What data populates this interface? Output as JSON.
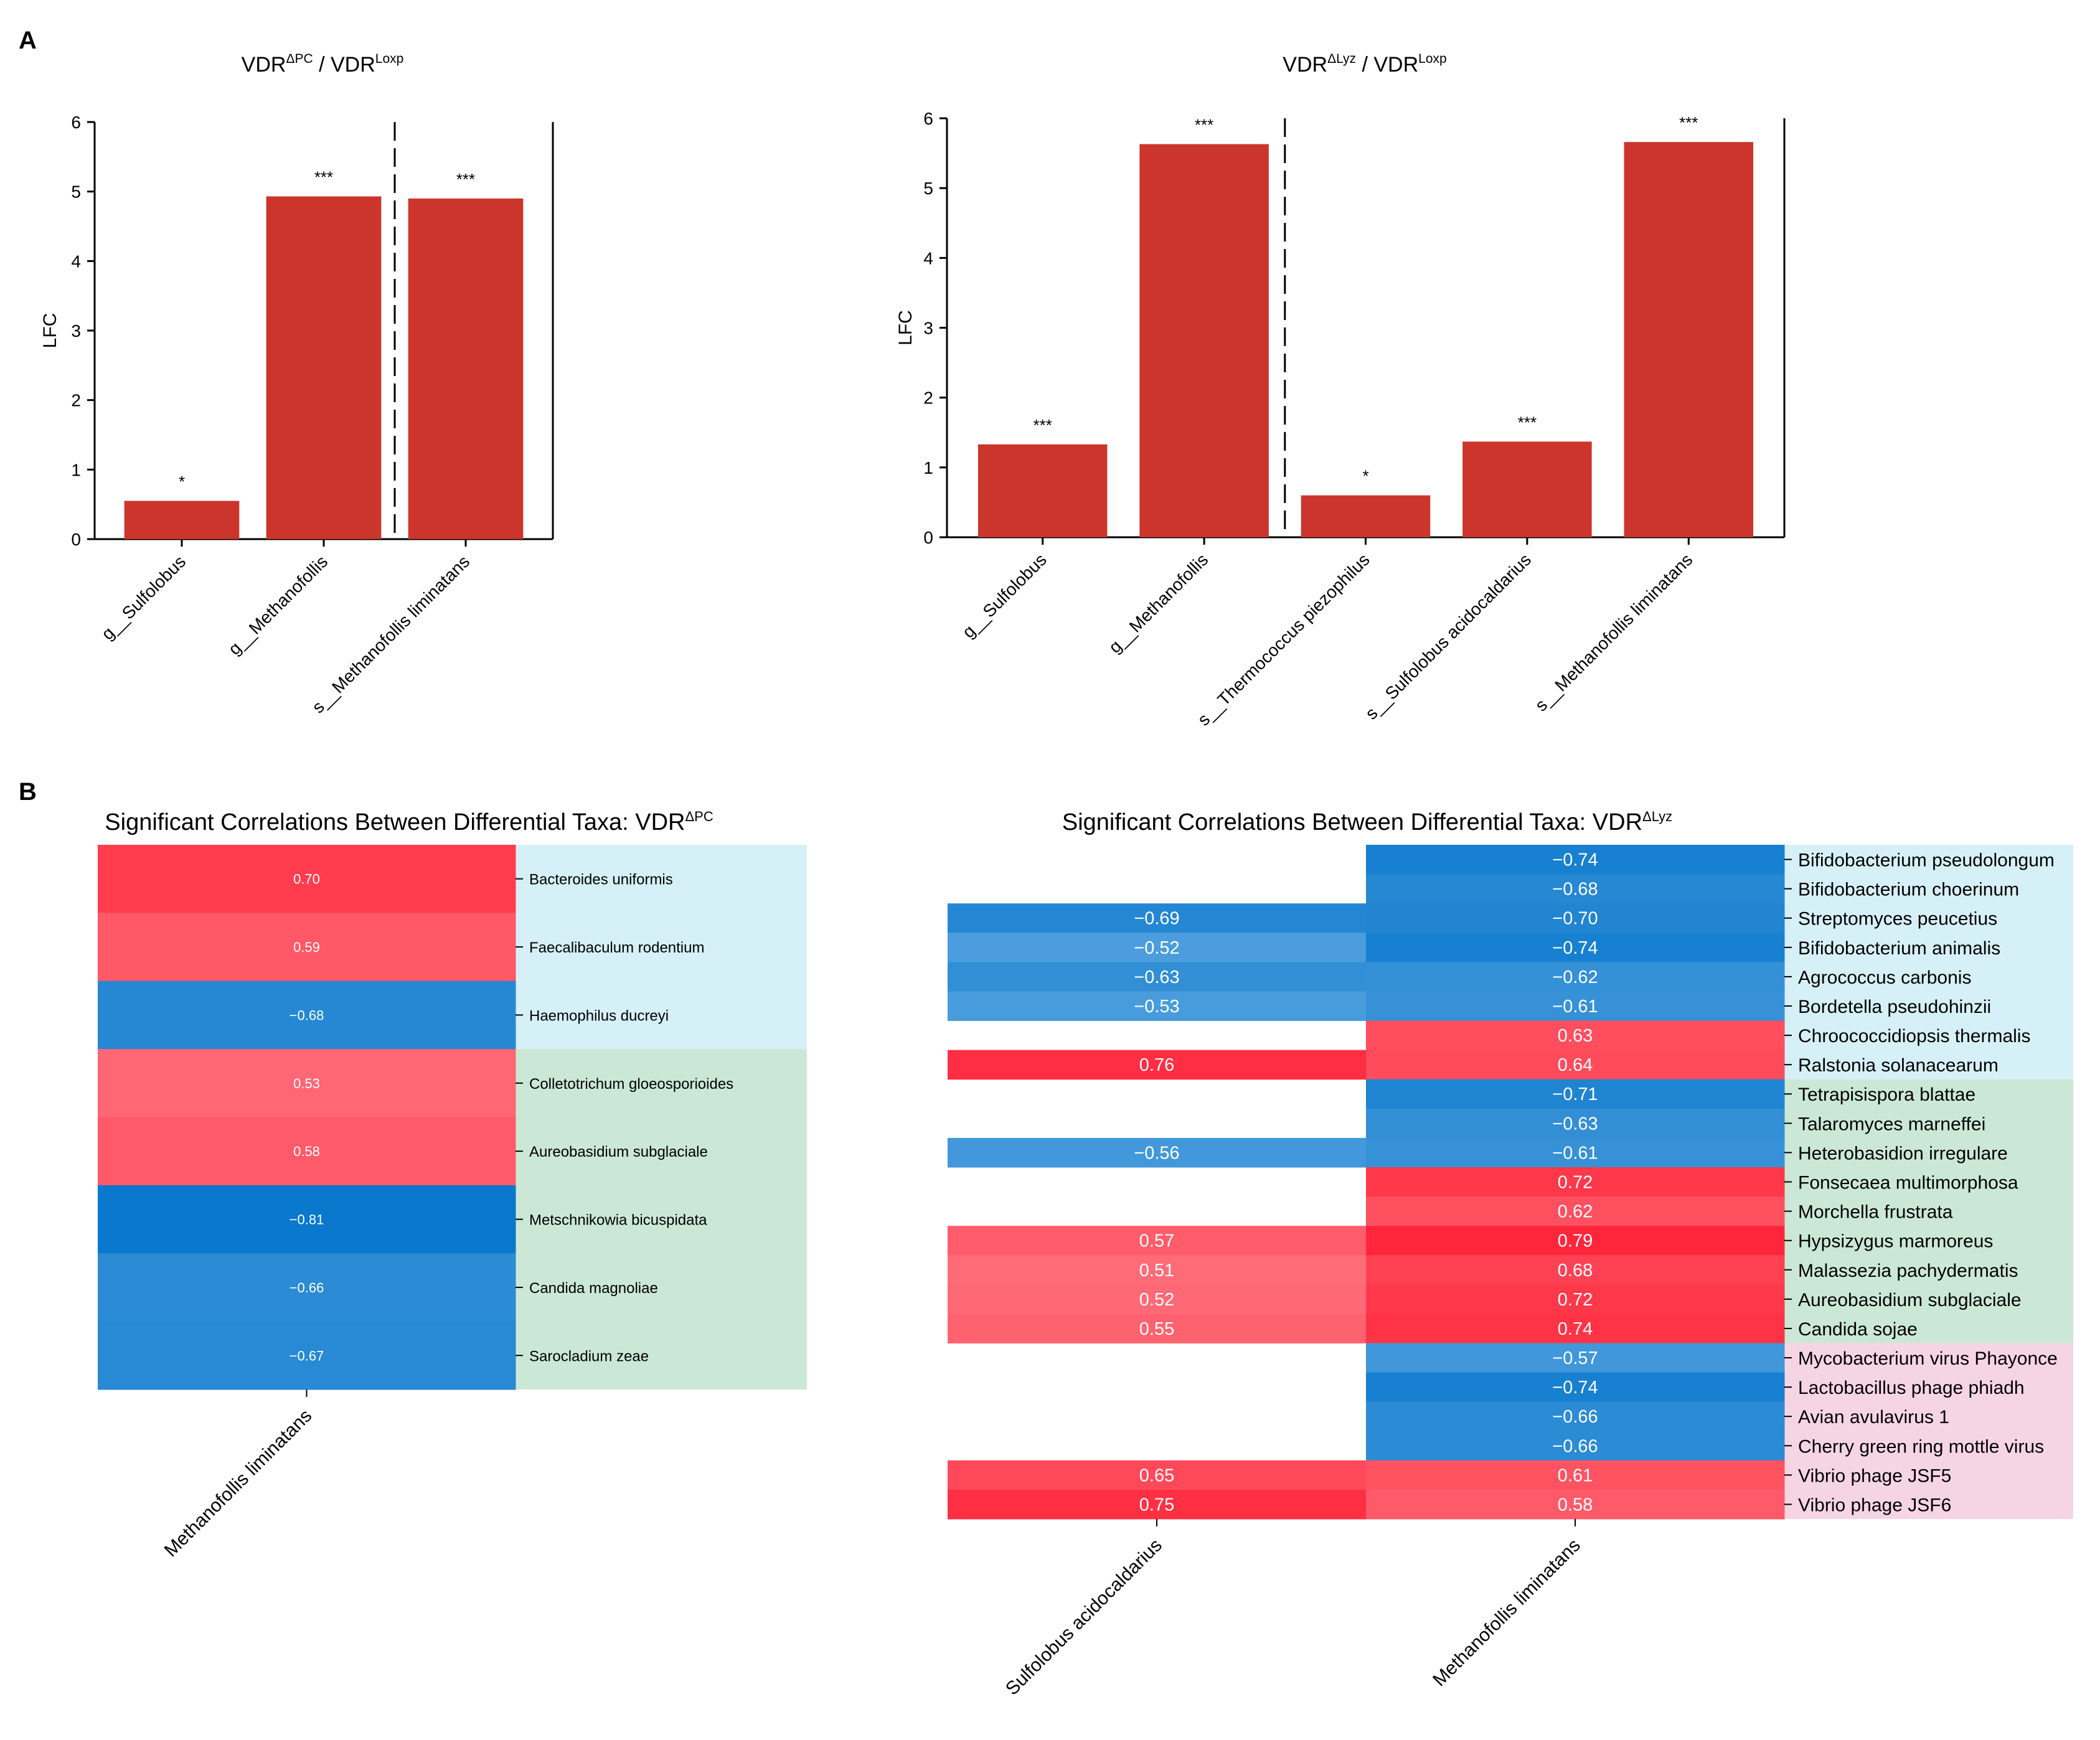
{
  "panel_labels": {
    "a": "A",
    "b": "B"
  },
  "colors": {
    "bar": "#cc352b",
    "negative_strong": "#0a78cc",
    "positive_strong": "#ff2439",
    "bg_bacteria": "#d6f0f7",
    "bg_fungi": "#cbe8d6",
    "bg_virus": "#f6d5e2"
  },
  "chart_data": [
    {
      "type": "bar",
      "id": "barPC",
      "title": {
        "prefix": "VDR",
        "sup1": "ΔPC",
        "middle": " / VDR",
        "sup2": "Loxp"
      },
      "ylabel": "LFC",
      "ylim": [
        0,
        6
      ],
      "yticks": [
        0,
        1,
        2,
        3,
        4,
        5,
        6
      ],
      "categories": [
        "g__Sulfolobus",
        "g__Methanofollis",
        "s__Methanofollis liminatans"
      ],
      "values": [
        0.55,
        4.93,
        4.9
      ],
      "significance": [
        "*",
        "***",
        "***"
      ],
      "divider_after_index": 1
    },
    {
      "type": "bar",
      "id": "barLyz",
      "title": {
        "prefix": "VDR",
        "sup1": "ΔLyz",
        "middle": " / VDR",
        "sup2": "Loxp"
      },
      "ylabel": "LFC",
      "ylim": [
        0,
        6
      ],
      "yticks": [
        0,
        1,
        2,
        3,
        4,
        5,
        6
      ],
      "categories": [
        "g__Sulfolobus",
        "g__Methanofollis",
        "s__Thermococcus piezophilus",
        "s__Sulfolobus acidocaldarius",
        "s__Methanofollis liminatans"
      ],
      "values": [
        1.33,
        5.63,
        0.6,
        1.37,
        5.66
      ],
      "significance": [
        "***",
        "***",
        "*",
        "***",
        "***"
      ],
      "divider_after_index": 1
    },
    {
      "type": "heatmap",
      "id": "hmPC",
      "title": {
        "prefix": "Significant Correlations Between Differential Taxa: VDR",
        "sup": "ΔPC"
      },
      "columns": [
        "Methanofollis liminatans"
      ],
      "rows": [
        "Bacteroides uniformis",
        "Faecalibaculum rodentium",
        "Haemophilus ducreyi",
        "Colletotrichum gloeosporioides",
        "Aureobasidium subglaciale",
        "Metschnikowia bicuspidata",
        "Candida magnoliae",
        "Sarocladium zeae"
      ],
      "row_groups": [
        "bacteria",
        "bacteria",
        "bacteria",
        "fungi",
        "fungi",
        "fungi",
        "fungi",
        "fungi"
      ],
      "values": [
        [
          0.7
        ],
        [
          0.59
        ],
        [
          -0.68
        ],
        [
          0.53
        ],
        [
          0.58
        ],
        [
          -0.81
        ],
        [
          -0.66
        ],
        [
          -0.67
        ]
      ],
      "labels": [
        [
          "0.70"
        ],
        [
          "0.59"
        ],
        [
          "−0.68"
        ],
        [
          "0.53"
        ],
        [
          "0.58"
        ],
        [
          "−0.81"
        ],
        [
          "−0.66"
        ],
        [
          "−0.67"
        ]
      ]
    },
    {
      "type": "heatmap",
      "id": "hmLyz",
      "title": {
        "prefix": "Significant Correlations Between Differential Taxa: VDR",
        "sup": "ΔLyz"
      },
      "columns": [
        "Sulfolobus acidocaldarius",
        "Methanofollis liminatans"
      ],
      "rows": [
        "Bifidobacterium pseudolongum",
        "Bifidobacterium choerinum",
        "Streptomyces peucetius",
        "Bifidobacterium animalis",
        "Agrococcus carbonis",
        "Bordetella pseudohinzii",
        "Chroococcidiopsis thermalis",
        "Ralstonia solanacearum",
        "Tetrapisispora blattae",
        "Talaromyces marneffei",
        "Heterobasidion irregulare",
        "Fonsecaea multimorphosa",
        "Morchella frustrata",
        "Hypsizygus marmoreus",
        "Malassezia pachydermatis",
        "Aureobasidium subglaciale",
        "Candida sojae",
        "Mycobacterium virus Phayonce",
        "Lactobacillus phage phiadh",
        "Avian avulavirus 1",
        "Cherry green ring mottle virus",
        "Vibrio phage JSF5",
        "Vibrio phage JSF6"
      ],
      "row_groups": [
        "bacteria",
        "bacteria",
        "bacteria",
        "bacteria",
        "bacteria",
        "bacteria",
        "bacteria",
        "bacteria",
        "fungi",
        "fungi",
        "fungi",
        "fungi",
        "fungi",
        "fungi",
        "fungi",
        "fungi",
        "fungi",
        "virus",
        "virus",
        "virus",
        "virus",
        "virus",
        "virus"
      ],
      "values": [
        [
          null,
          -0.74
        ],
        [
          null,
          -0.68
        ],
        [
          -0.69,
          -0.7
        ],
        [
          -0.52,
          -0.74
        ],
        [
          -0.63,
          -0.62
        ],
        [
          -0.53,
          -0.61
        ],
        [
          null,
          0.63
        ],
        [
          0.76,
          0.64
        ],
        [
          null,
          -0.71
        ],
        [
          null,
          -0.63
        ],
        [
          -0.56,
          -0.61
        ],
        [
          null,
          0.72
        ],
        [
          null,
          0.62
        ],
        [
          0.57,
          0.79
        ],
        [
          0.51,
          0.68
        ],
        [
          0.52,
          0.72
        ],
        [
          0.55,
          0.74
        ],
        [
          null,
          -0.57
        ],
        [
          null,
          -0.74
        ],
        [
          null,
          -0.66
        ],
        [
          null,
          -0.66
        ],
        [
          0.65,
          0.61
        ],
        [
          0.75,
          0.58
        ]
      ],
      "labels": [
        [
          "",
          "−0.74"
        ],
        [
          "",
          "−0.68"
        ],
        [
          "−0.69",
          "−0.70"
        ],
        [
          "−0.52",
          "−0.74"
        ],
        [
          "−0.63",
          "−0.62"
        ],
        [
          "−0.53",
          "−0.61"
        ],
        [
          "",
          "0.63"
        ],
        [
          "0.76",
          "0.64"
        ],
        [
          "",
          "−0.71"
        ],
        [
          "",
          "−0.63"
        ],
        [
          "−0.56",
          "−0.61"
        ],
        [
          "",
          "0.72"
        ],
        [
          "",
          "0.62"
        ],
        [
          "0.57",
          "0.79"
        ],
        [
          "0.51",
          "0.68"
        ],
        [
          "0.52",
          "0.72"
        ],
        [
          "0.55",
          "0.74"
        ],
        [
          "",
          "−0.57"
        ],
        [
          "",
          "−0.74"
        ],
        [
          "",
          "−0.66"
        ],
        [
          "",
          "−0.66"
        ],
        [
          "0.65",
          "0.61"
        ],
        [
          "0.75",
          "0.58"
        ]
      ]
    }
  ]
}
